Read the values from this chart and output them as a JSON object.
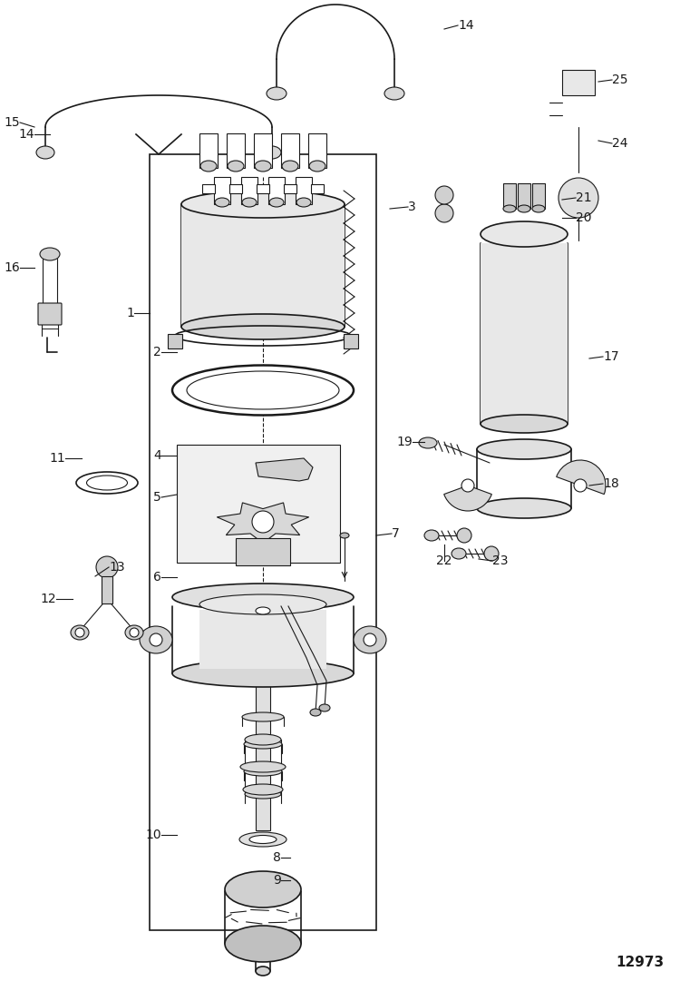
{
  "bg_color": "#ffffff",
  "line_color": "#1a1a1a",
  "fig_width": 7.5,
  "fig_height": 10.92,
  "dpi": 100,
  "diagram_id": "12973"
}
